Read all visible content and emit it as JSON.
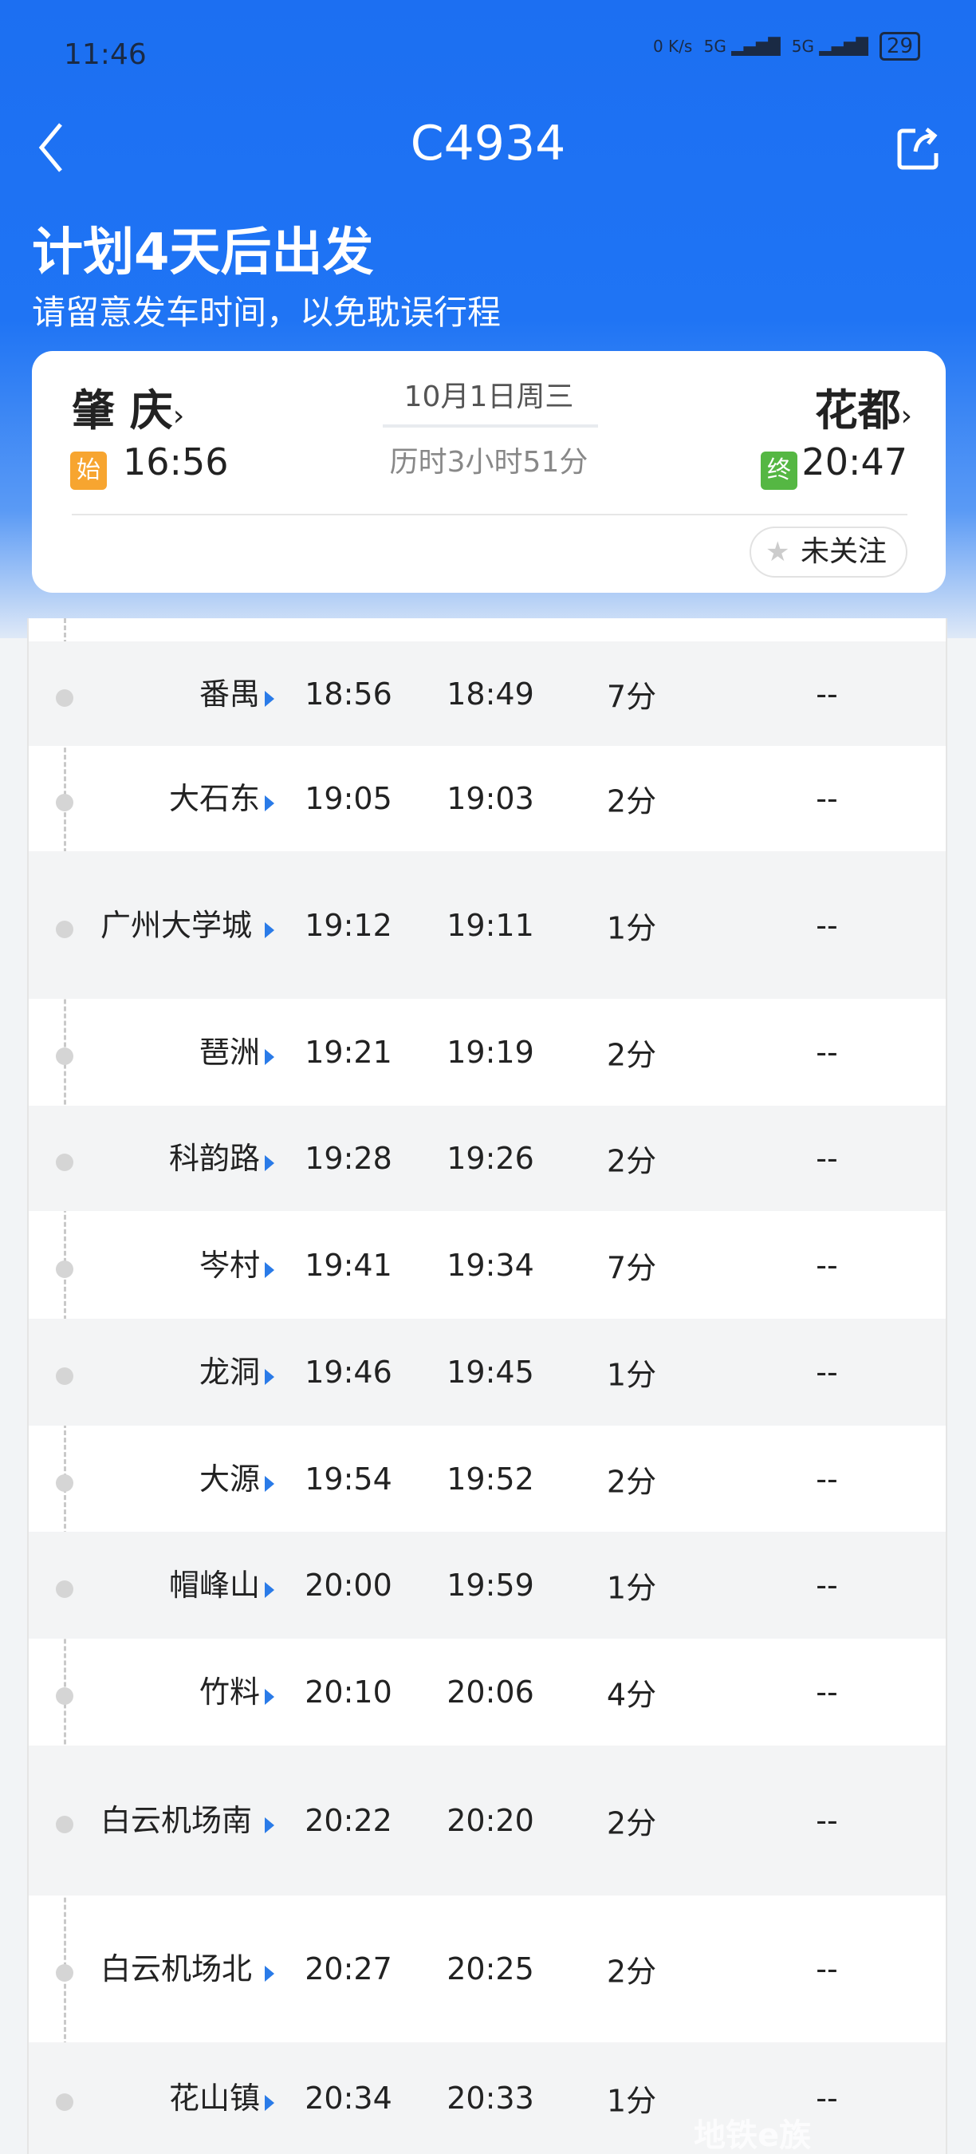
{
  "status_bar": {
    "time": "11:46",
    "net_speed": "0 K/s",
    "signal1": "5G",
    "signal2": "5G",
    "battery": "29"
  },
  "header": {
    "title": "C4934",
    "back_icon": "chevron-left-icon",
    "share_icon": "share-icon"
  },
  "banner": {
    "headline": "计划4天后出发",
    "subtitle": "请留意发车时间，以免耽误行程"
  },
  "trip": {
    "from": "肇 庆",
    "from_tag": "始",
    "depart": "16:56",
    "to": "花都",
    "to_tag": "终",
    "arrive": "20:47",
    "date": "10月1日周三",
    "duration": "历时3小时51分",
    "follow_label": "未关注",
    "colors": {
      "start_tag": "#f7a530",
      "end_tag": "#55b743",
      "accent": "#1f74f4"
    }
  },
  "stops": [
    {
      "name": "番禺",
      "arr": "18:56",
      "dep": "18:49",
      "stay": "7分",
      "extra": "--"
    },
    {
      "name": "大石东",
      "arr": "19:05",
      "dep": "19:03",
      "stay": "2分",
      "extra": "--"
    },
    {
      "name": "广州大学城",
      "arr": "19:12",
      "dep": "19:11",
      "stay": "1分",
      "extra": "--"
    },
    {
      "name": "琶洲",
      "arr": "19:21",
      "dep": "19:19",
      "stay": "2分",
      "extra": "--"
    },
    {
      "name": "科韵路",
      "arr": "19:28",
      "dep": "19:26",
      "stay": "2分",
      "extra": "--"
    },
    {
      "name": "岑村",
      "arr": "19:41",
      "dep": "19:34",
      "stay": "7分",
      "extra": "--"
    },
    {
      "name": "龙洞",
      "arr": "19:46",
      "dep": "19:45",
      "stay": "1分",
      "extra": "--"
    },
    {
      "name": "大源",
      "arr": "19:54",
      "dep": "19:52",
      "stay": "2分",
      "extra": "--"
    },
    {
      "name": "帽峰山",
      "arr": "20:00",
      "dep": "19:59",
      "stay": "1分",
      "extra": "--"
    },
    {
      "name": "竹料",
      "arr": "20:10",
      "dep": "20:06",
      "stay": "4分",
      "extra": "--"
    },
    {
      "name": "白云机场南",
      "arr": "20:22",
      "dep": "20:20",
      "stay": "2分",
      "extra": "--"
    },
    {
      "name": "白云机场北",
      "arr": "20:27",
      "dep": "20:25",
      "stay": "2分",
      "extra": "--"
    },
    {
      "name": "花山镇",
      "arr": "20:34",
      "dep": "20:33",
      "stay": "1分",
      "extra": "--"
    }
  ],
  "watermark": "地铁e族"
}
